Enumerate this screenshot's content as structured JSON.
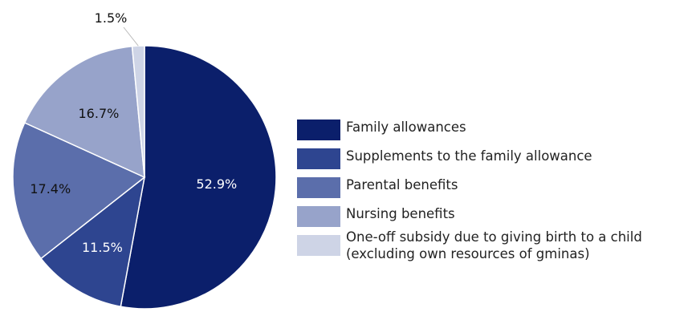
{
  "chart_data": {
    "type": "pie",
    "title": "",
    "start_angle_deg": 0,
    "direction": "clockwise",
    "slices": [
      {
        "name": "Family allowances",
        "value": 52.9,
        "label": "52.9%",
        "color": "#0b1f6b"
      },
      {
        "name": "Supplements to the family allowance",
        "value": 11.5,
        "label": "11.5%",
        "color": "#2e4590"
      },
      {
        "name": "Parental benefits",
        "value": 17.4,
        "label": "17.4%",
        "color": "#5b6eab"
      },
      {
        "name": "Nursing benefits",
        "value": 16.7,
        "label": "16.7%",
        "color": "#97a3ca"
      },
      {
        "name": "One-off subsidy due to giving birth to a child (excluding own resources of gminas)",
        "value": 1.5,
        "label": "1.5%",
        "color": "#ced4e6"
      }
    ],
    "legend_placement": "right",
    "legend": [
      {
        "lines": [
          "Family allowances"
        ]
      },
      {
        "lines": [
          "Supplements to the family allowance"
        ]
      },
      {
        "lines": [
          "Parental benefits"
        ]
      },
      {
        "lines": [
          "Nursing benefits"
        ]
      },
      {
        "lines": [
          "One-off subsidy due to giving birth to a child",
          "(excluding own resources of gminas)"
        ]
      }
    ]
  }
}
